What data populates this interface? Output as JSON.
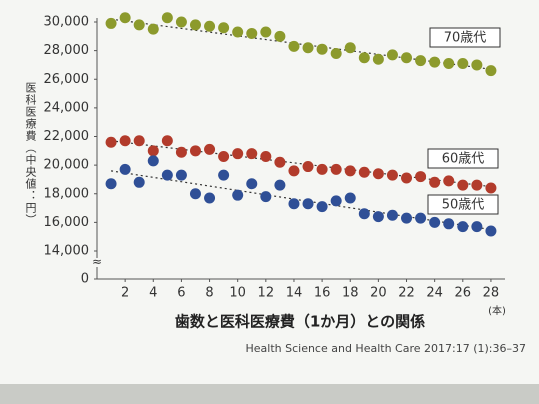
{
  "chart_data": {
    "type": "scatter",
    "title": "歯数と医科医療費（1か月）との関係",
    "y_label": "医科医療費（中央値：円）",
    "x_unit": "(本)",
    "source": "Health Science and Health Care 2017:17 (1):36–37",
    "x": [
      1,
      2,
      3,
      4,
      5,
      6,
      7,
      8,
      9,
      10,
      11,
      12,
      13,
      14,
      15,
      16,
      17,
      18,
      19,
      20,
      21,
      22,
      23,
      24,
      25,
      26,
      27,
      28
    ],
    "xlim": [
      0,
      29
    ],
    "xticks": [
      2,
      4,
      6,
      8,
      10,
      12,
      14,
      16,
      18,
      20,
      22,
      24,
      26,
      28
    ],
    "ylim": [
      0,
      30000
    ],
    "yticks": [
      0,
      {
        "value": 14000,
        "label": "14,000"
      },
      {
        "value": 16000,
        "label": "16,000"
      },
      {
        "value": 18000,
        "label": "18,000"
      },
      {
        "value": 20000,
        "label": "20,000"
      },
      {
        "value": 22000,
        "label": "22,000"
      },
      {
        "value": 24000,
        "label": "24,000"
      },
      {
        "value": 26000,
        "label": "26,000"
      },
      {
        "value": 28000,
        "label": "28,000"
      },
      {
        "value": 30000,
        "label": "30,000"
      }
    ],
    "y_axis_break": true,
    "series": [
      {
        "name": "70歳代",
        "color": "#8c9a2c",
        "values": [
          29900,
          30300,
          29800,
          29500,
          30300,
          30000,
          29800,
          29700,
          29600,
          29300,
          29200,
          29300,
          29000,
          28300,
          28200,
          28100,
          27800,
          28200,
          27500,
          27400,
          27700,
          27500,
          27300,
          27200,
          27100,
          27100,
          27000,
          26600
        ],
        "trend": {
          "x": [
            1,
            28
          ],
          "values": [
            30200,
            26700
          ]
        }
      },
      {
        "name": "60歳代",
        "color": "#b23b2b",
        "values": [
          21600,
          21700,
          21700,
          21000,
          21700,
          20900,
          21000,
          21100,
          20600,
          20800,
          20800,
          20600,
          20200,
          19600,
          19900,
          19700,
          19700,
          19600,
          19500,
          19400,
          19300,
          19100,
          19200,
          18800,
          18900,
          18600,
          18600,
          18400
        ],
        "trend": {
          "x": [
            1,
            28
          ],
          "values": [
            21700,
            18500
          ]
        }
      },
      {
        "name": "50歳代",
        "color": "#2f4f96",
        "values": [
          18700,
          19700,
          18800,
          20300,
          19300,
          19300,
          18000,
          17700,
          19300,
          17900,
          18700,
          17800,
          18600,
          17300,
          17300,
          17100,
          17500,
          17700,
          16600,
          16400,
          16500,
          16300,
          16300,
          16000,
          15900,
          15700,
          15700,
          15400
        ],
        "trend": {
          "x": [
            1,
            28
          ],
          "values": [
            19600,
            15500
          ]
        }
      }
    ]
  }
}
